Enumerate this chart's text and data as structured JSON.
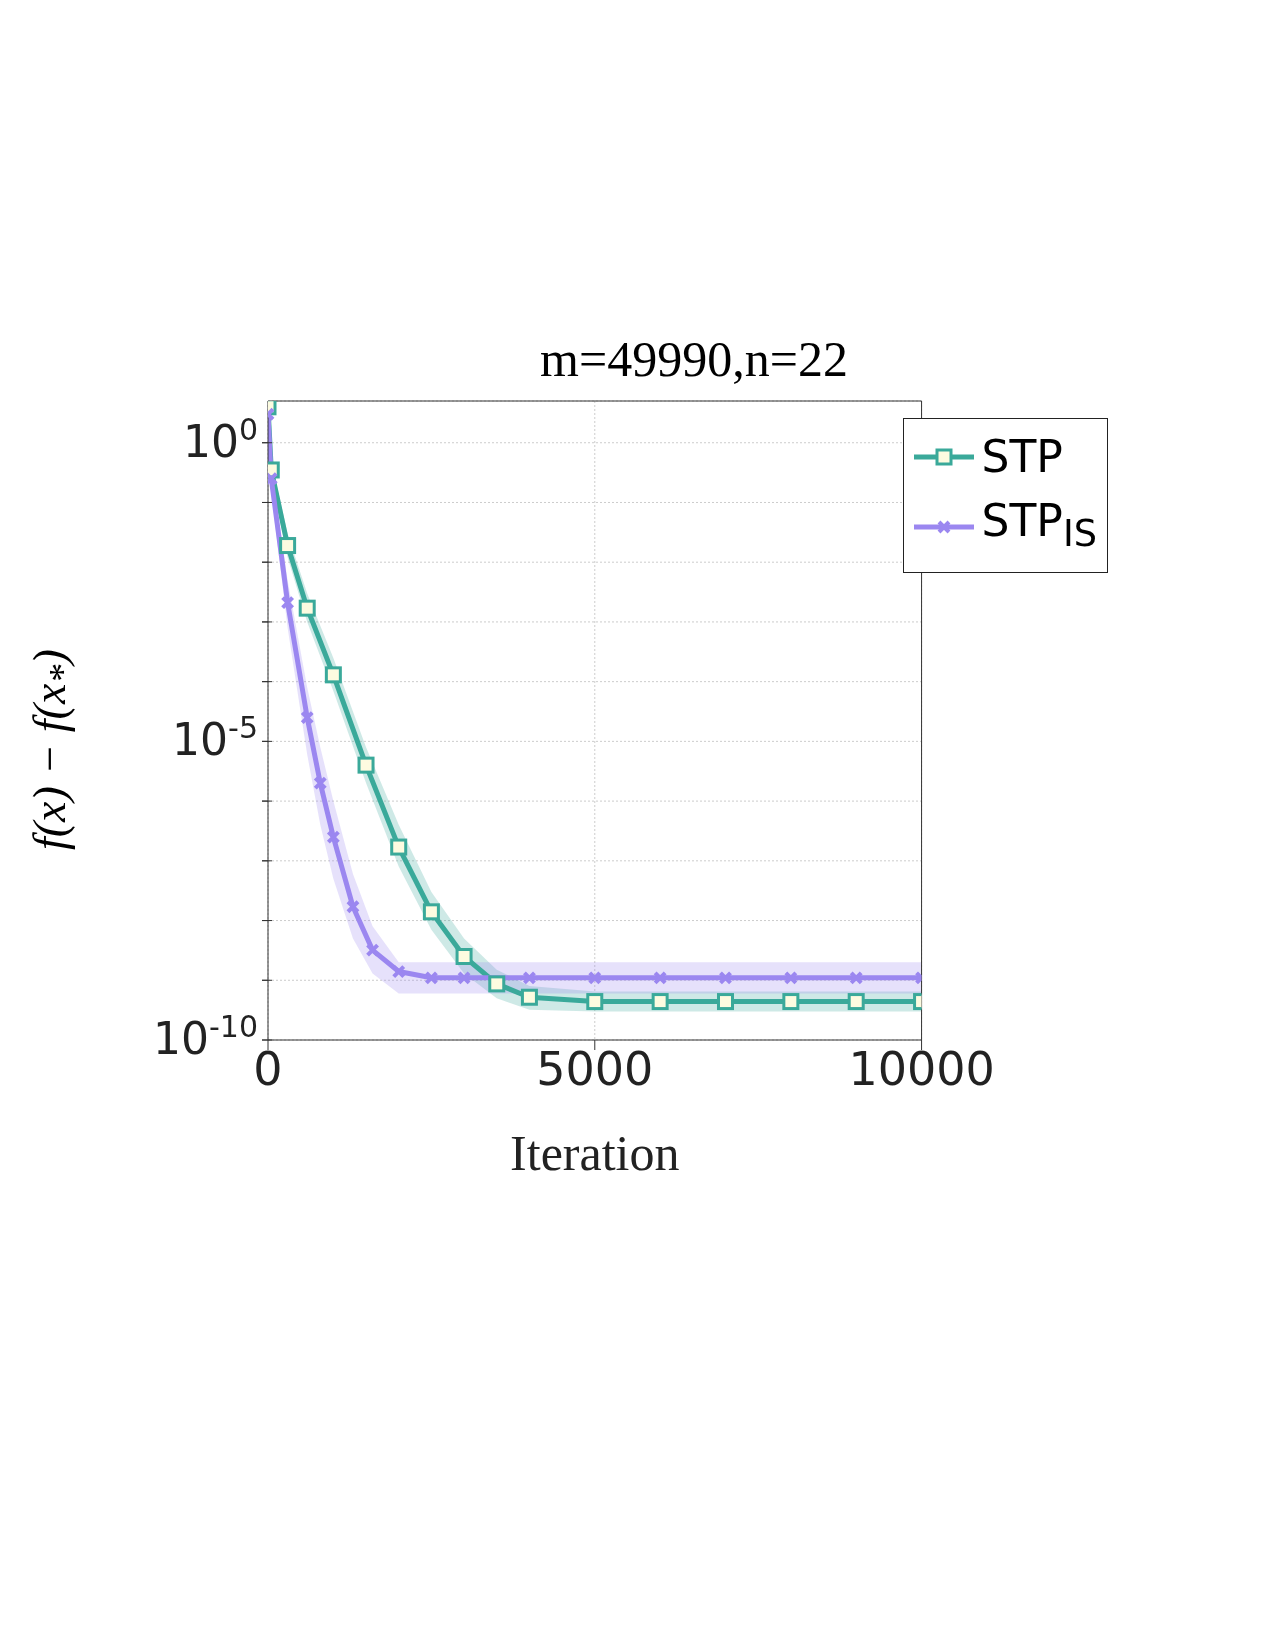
{
  "chart_data": {
    "type": "line",
    "title": "m=49990,n=22",
    "xlabel": "Iteration",
    "ylabel": "f(x) − f(x$_{*}$)",
    "log": "y",
    "grid": true,
    "legend": "top right",
    "line_style": "solid",
    "xlim": [
      0,
      10000
    ],
    "xticks": [
      0,
      5000,
      10000
    ],
    "ylim": [
      1e-10,
      5
    ],
    "yticks": [
      {
        "value": 1e-10,
        "label": "10$^{-10}$"
      },
      {
        "value": 1e-09,
        "label": null
      },
      {
        "value": 1e-08,
        "label": null
      },
      {
        "value": 1e-07,
        "label": null
      },
      {
        "value": 1e-06,
        "label": null
      },
      {
        "value": 1e-05,
        "label": "10$^{-5}$"
      },
      {
        "value": 0.0001,
        "label": null
      },
      {
        "value": 0.001,
        "label": null
      },
      {
        "value": 0.01,
        "label": null
      },
      {
        "value": 0.1,
        "label": null
      },
      {
        "value": 1,
        "label": "10$^{0}$"
      }
    ],
    "series": [
      {
        "name": "STP",
        "color": "#3aa99a",
        "marker": "square",
        "x": [
          0,
          50,
          300,
          600,
          1000,
          1500,
          2000,
          2500,
          3000,
          3500,
          4000,
          5000,
          6000,
          7000,
          8000,
          9000,
          10000
        ],
        "values": [
          4,
          0.35,
          0.019,
          0.0017,
          0.00013,
          4e-06,
          1.7e-07,
          1.4e-08,
          2.5e-09,
          8.7e-10,
          5.2e-10,
          4.4e-10,
          4.4e-10,
          4.4e-10,
          4.4e-10,
          4.4e-10,
          4.4e-10
        ],
        "lower": [
          3,
          0.25,
          0.012,
          0.001,
          7e-05,
          2e-06,
          8e-08,
          7e-09,
          1.3e-09,
          5e-10,
          3.2e-10,
          3e-10,
          3e-10,
          3e-10,
          3e-10,
          3e-10,
          3e-10
        ],
        "upper": [
          5,
          0.5,
          0.03,
          0.003,
          0.00025,
          8e-06,
          4e-07,
          3e-08,
          5e-09,
          1.5e-09,
          8e-10,
          6.5e-10,
          6.5e-10,
          6.5e-10,
          6.5e-10,
          6.5e-10,
          6.5e-10
        ]
      },
      {
        "name": "STP$_{IS}$",
        "color": "#9b87f0",
        "marker": "cross",
        "x": [
          0,
          50,
          300,
          600,
          800,
          1000,
          1300,
          1600,
          2000,
          2500,
          3000,
          4000,
          5000,
          6000,
          7000,
          8000,
          9000,
          10000
        ],
        "values": [
          3,
          0.25,
          0.0021,
          2.5e-05,
          2e-06,
          2.5e-07,
          1.7e-08,
          3.2e-09,
          1.4e-09,
          1.1e-09,
          1.1e-09,
          1.1e-09,
          1.1e-09,
          1.1e-09,
          1.1e-09,
          1.1e-09,
          1.1e-09,
          1.1e-09
        ],
        "lower": [
          2,
          0.15,
          0.0008,
          6e-06,
          4e-07,
          5e-08,
          5e-09,
          1.3e-09,
          6e-10,
          6e-10,
          6e-10,
          6e-10,
          6e-10,
          6e-10,
          6e-10,
          6e-10,
          6e-10,
          6e-10
        ],
        "upper": [
          4,
          0.4,
          0.005,
          8e-05,
          8e-06,
          1e-06,
          6e-08,
          8e-09,
          2e-09,
          2e-09,
          2e-09,
          2e-09,
          2e-09,
          2e-09,
          2e-09,
          2e-09,
          2e-09,
          2e-09
        ]
      }
    ]
  }
}
